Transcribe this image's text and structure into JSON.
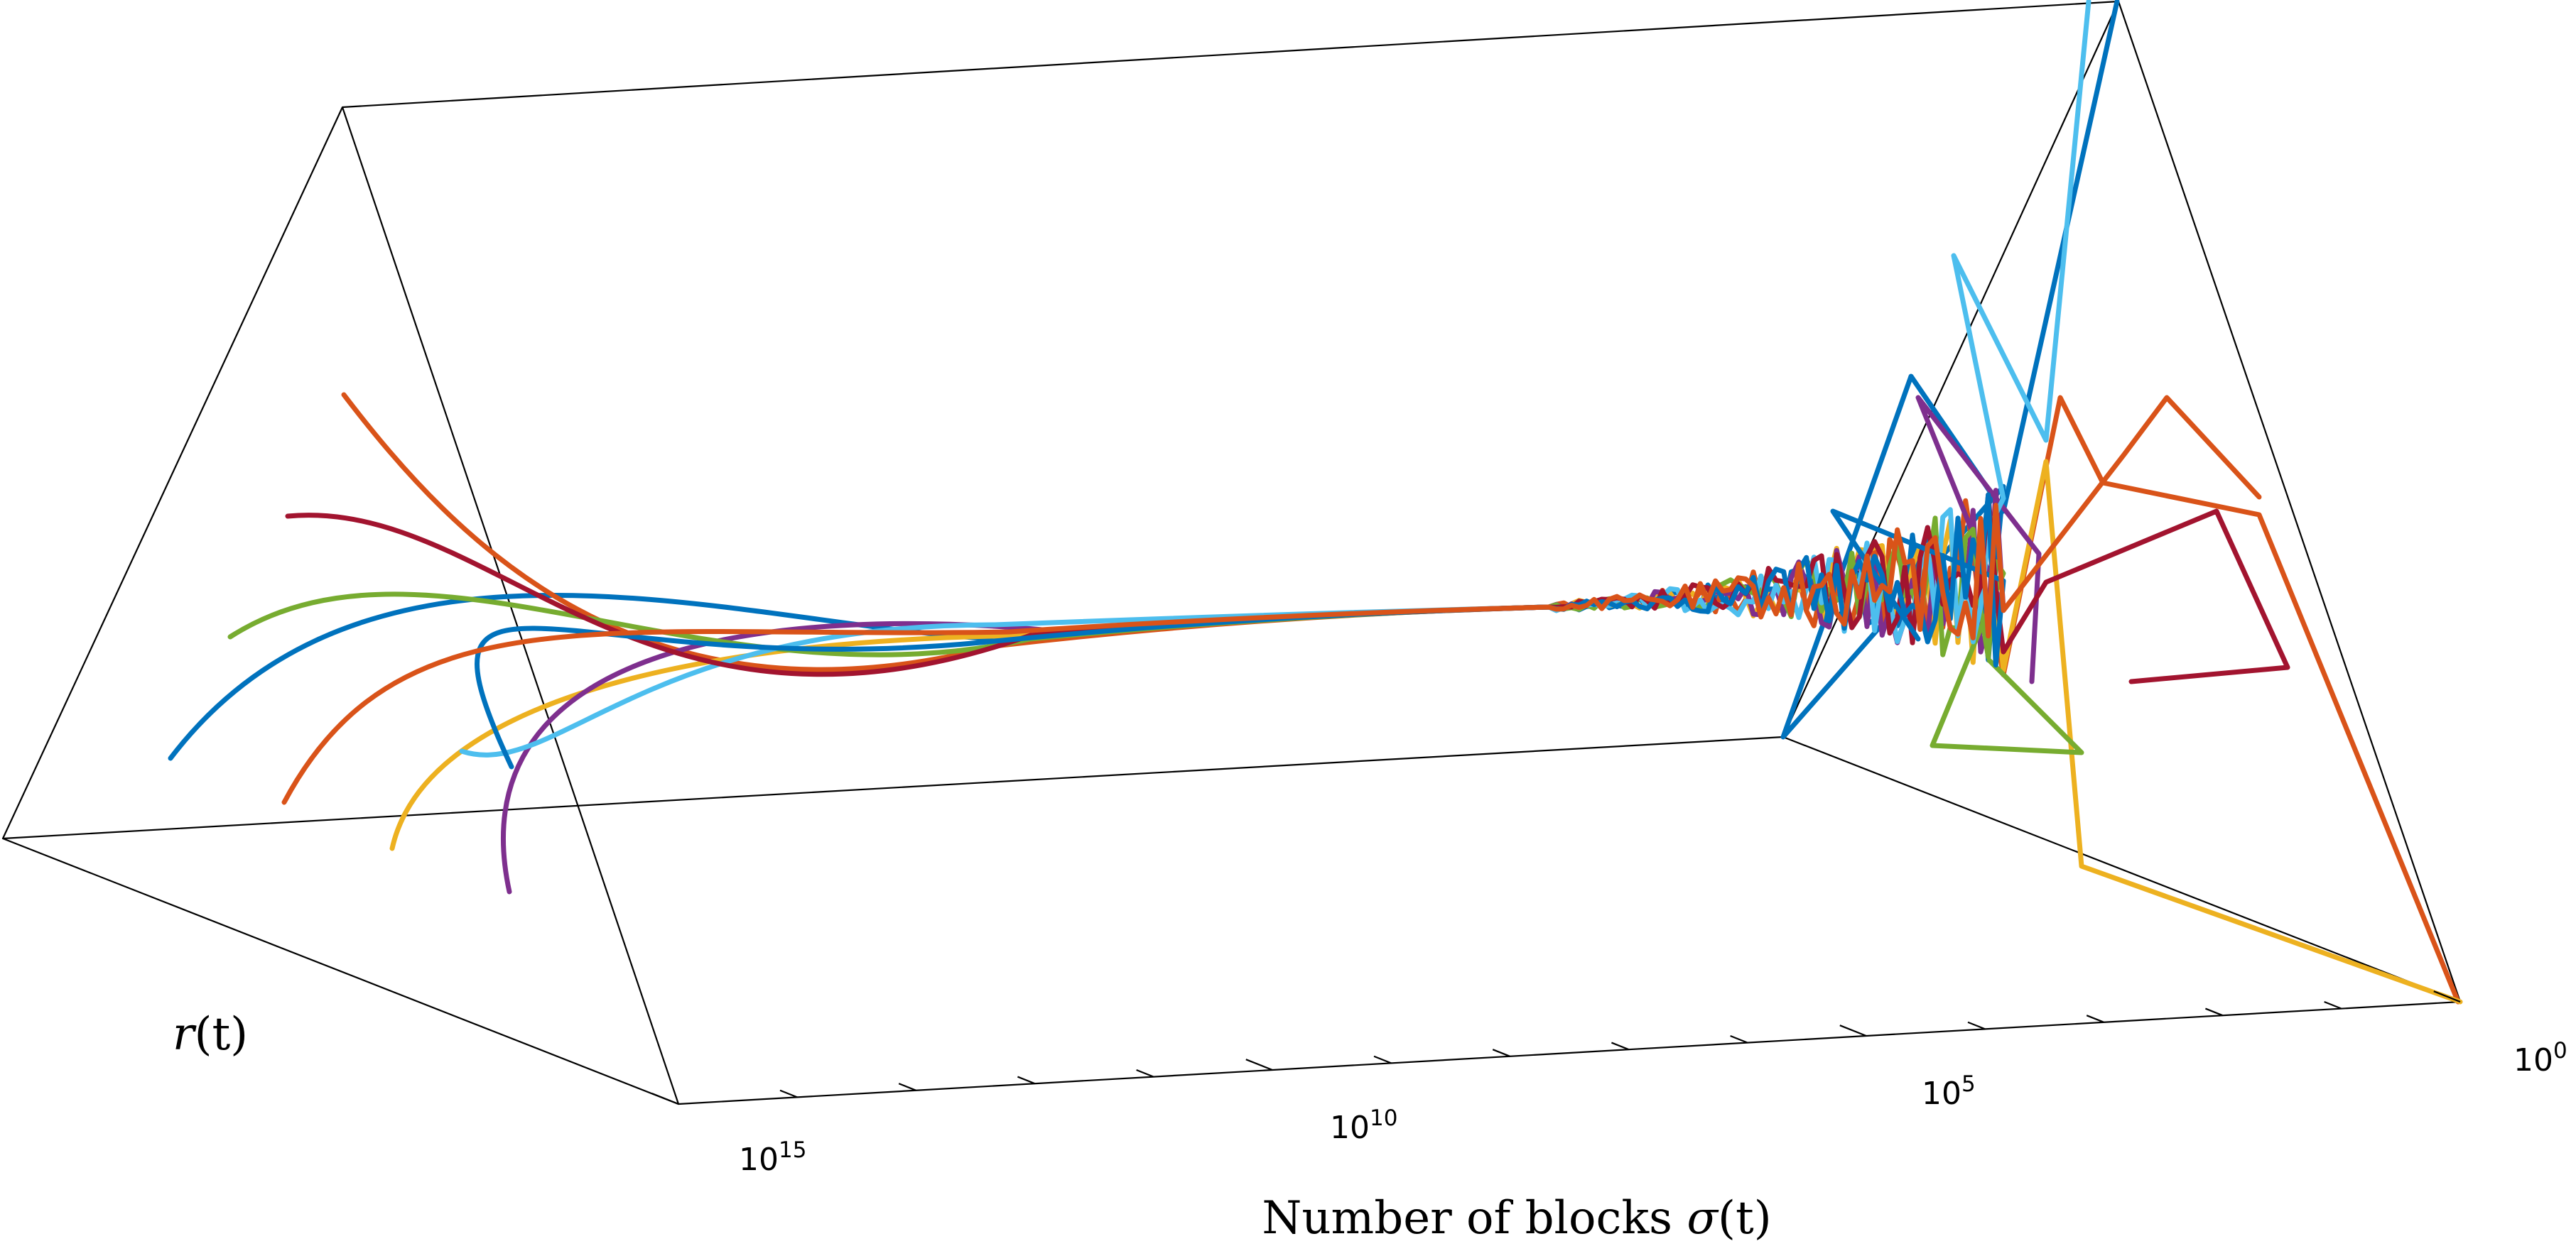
{
  "chart_data": {
    "type": "line",
    "subtype": "3d-trajectory",
    "xlabel_parts": [
      "Number of blocks ",
      "σ",
      "(t)"
    ],
    "ylabel_parts": [
      "r",
      "(t)"
    ],
    "x_scale": "log",
    "x_direction": "reversed",
    "x_ticks": [
      {
        "base": "10",
        "exp": "15",
        "value": 1000000000000000.0
      },
      {
        "base": "10",
        "exp": "10",
        "value": 10000000000.0
      },
      {
        "base": "10",
        "exp": "5",
        "value": 100000.0
      },
      {
        "base": "10",
        "exp": "0",
        "value": 1
      }
    ],
    "xlim": [
      1000000000000000.0,
      1
    ],
    "grid": false,
    "legend": false,
    "series": [
      {
        "color": "#0072BD"
      },
      {
        "color": "#D95319"
      },
      {
        "color": "#EDB120"
      },
      {
        "color": "#7E2F8E"
      },
      {
        "color": "#77AC30"
      },
      {
        "color": "#4DBEEE"
      },
      {
        "color": "#A2142F"
      },
      {
        "color": "#0072BD"
      },
      {
        "color": "#D95319"
      }
    ]
  }
}
